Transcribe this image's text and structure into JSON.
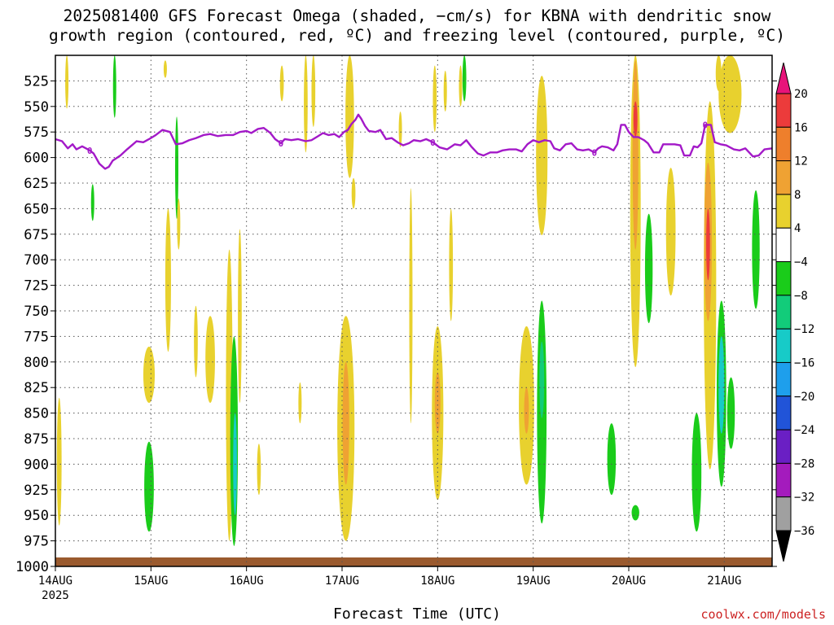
{
  "title_line1": "2025081400 GFS Forecast Omega (shaded, −cm/s) for KBNA with dendritic snow",
  "title_line2": "growth region (contoured, red, ºC) and freezing level (contoured, purple, ºC)",
  "xlabel": "Forecast Time (UTC)",
  "credit": "coolwx.com/models",
  "chart_data": {
    "type": "heatmap",
    "x_start_label": "14AUG",
    "x_start_year": "2025",
    "x_tick_labels": [
      "14AUG",
      "15AUG",
      "16AUG",
      "17AUG",
      "18AUG",
      "19AUG",
      "20AUG",
      "21AUG"
    ],
    "x_range_days": [
      0,
      7.5
    ],
    "y_axis": "pressure (hPa)",
    "y_tick_labels": [
      "525",
      "550",
      "575",
      "600",
      "625",
      "650",
      "675",
      "700",
      "725",
      "750",
      "775",
      "800",
      "825",
      "850",
      "875",
      "900",
      "925",
      "950",
      "975",
      "1000"
    ],
    "y_range": [
      500,
      1000
    ],
    "grid": true,
    "colorbar": {
      "labels": [
        "20",
        "16",
        "12",
        "8",
        "4",
        "−4",
        "−8",
        "−12",
        "−16",
        "−20",
        "−24",
        "−28",
        "−32",
        "−36"
      ],
      "colors": [
        "#e8137a",
        "#ec3b3b",
        "#ee7f2c",
        "#efa233",
        "#e8d12e",
        "#ffffff",
        "#1acc1a",
        "#12cc7a",
        "#17cbc8",
        "#1e9fec",
        "#2154d8",
        "#6a1fc4",
        "#a41bbd",
        "#a0a0a0",
        "#000000"
      ]
    },
    "freezing_level_label": "0",
    "freezing_level_color": "#a319c8",
    "freezing_level": [
      [
        0.0,
        582
      ],
      [
        0.07,
        584
      ],
      [
        0.13,
        591
      ],
      [
        0.18,
        587
      ],
      [
        0.22,
        592
      ],
      [
        0.28,
        589
      ],
      [
        0.32,
        591
      ],
      [
        0.36,
        593
      ],
      [
        0.4,
        596
      ],
      [
        0.46,
        606
      ],
      [
        0.52,
        611
      ],
      [
        0.56,
        609
      ],
      [
        0.6,
        603
      ],
      [
        0.68,
        598
      ],
      [
        0.75,
        592
      ],
      [
        0.8,
        588
      ],
      [
        0.85,
        584
      ],
      [
        0.92,
        585
      ],
      [
        0.98,
        582
      ],
      [
        1.05,
        578
      ],
      [
        1.12,
        573
      ],
      [
        1.2,
        575
      ],
      [
        1.26,
        587
      ],
      [
        1.33,
        586
      ],
      [
        1.4,
        583
      ],
      [
        1.47,
        581
      ],
      [
        1.55,
        578
      ],
      [
        1.62,
        577
      ],
      [
        1.7,
        579
      ],
      [
        1.78,
        578
      ],
      [
        1.86,
        578
      ],
      [
        1.93,
        575
      ],
      [
        2.0,
        574
      ],
      [
        2.05,
        576
      ],
      [
        2.12,
        572
      ],
      [
        2.18,
        571
      ],
      [
        2.25,
        576
      ],
      [
        2.3,
        582
      ],
      [
        2.36,
        586
      ],
      [
        2.4,
        582
      ],
      [
        2.47,
        583
      ],
      [
        2.54,
        582
      ],
      [
        2.62,
        584
      ],
      [
        2.68,
        583
      ],
      [
        2.75,
        579
      ],
      [
        2.8,
        576
      ],
      [
        2.86,
        578
      ],
      [
        2.92,
        577
      ],
      [
        2.97,
        580
      ],
      [
        3.02,
        575
      ],
      [
        3.06,
        573
      ],
      [
        3.1,
        567
      ],
      [
        3.14,
        563
      ],
      [
        3.17,
        558
      ],
      [
        3.2,
        562
      ],
      [
        3.24,
        569
      ],
      [
        3.28,
        574
      ],
      [
        3.35,
        575
      ],
      [
        3.4,
        573
      ],
      [
        3.46,
        582
      ],
      [
        3.52,
        581
      ],
      [
        3.58,
        585
      ],
      [
        3.64,
        588
      ],
      [
        3.7,
        586
      ],
      [
        3.75,
        583
      ],
      [
        3.82,
        584
      ],
      [
        3.88,
        582
      ],
      [
        3.95,
        585
      ],
      [
        4.02,
        590
      ],
      [
        4.1,
        592
      ],
      [
        4.18,
        587
      ],
      [
        4.24,
        588
      ],
      [
        4.3,
        583
      ],
      [
        4.35,
        589
      ],
      [
        4.42,
        596
      ],
      [
        4.48,
        598
      ],
      [
        4.55,
        595
      ],
      [
        4.62,
        595
      ],
      [
        4.68,
        593
      ],
      [
        4.75,
        592
      ],
      [
        4.82,
        592
      ],
      [
        4.88,
        594
      ],
      [
        4.94,
        587
      ],
      [
        5.0,
        583
      ],
      [
        5.06,
        585
      ],
      [
        5.12,
        583
      ],
      [
        5.18,
        584
      ],
      [
        5.22,
        591
      ],
      [
        5.28,
        593
      ],
      [
        5.34,
        587
      ],
      [
        5.4,
        586
      ],
      [
        5.46,
        592
      ],
      [
        5.52,
        593
      ],
      [
        5.58,
        592
      ],
      [
        5.64,
        595
      ],
      [
        5.68,
        591
      ],
      [
        5.72,
        589
      ],
      [
        5.78,
        590
      ],
      [
        5.84,
        593
      ],
      [
        5.88,
        587
      ],
      [
        5.92,
        568
      ],
      [
        5.96,
        568
      ],
      [
        6.0,
        575
      ],
      [
        6.05,
        580
      ],
      [
        6.1,
        580
      ],
      [
        6.16,
        583
      ],
      [
        6.2,
        586
      ],
      [
        6.26,
        595
      ],
      [
        6.32,
        595
      ],
      [
        6.36,
        587
      ],
      [
        6.42,
        587
      ],
      [
        6.48,
        587
      ],
      [
        6.54,
        588
      ],
      [
        6.58,
        598
      ],
      [
        6.64,
        598
      ],
      [
        6.68,
        589
      ],
      [
        6.72,
        590
      ],
      [
        6.76,
        586
      ],
      [
        6.8,
        568
      ],
      [
        6.86,
        568
      ],
      [
        6.9,
        585
      ],
      [
        6.96,
        587
      ],
      [
        7.02,
        588
      ],
      [
        7.1,
        592
      ],
      [
        7.16,
        593
      ],
      [
        7.22,
        591
      ],
      [
        7.3,
        599
      ],
      [
        7.36,
        598
      ],
      [
        7.42,
        592
      ],
      [
        7.5,
        591
      ]
    ],
    "ground_color": "#9a5a2e",
    "shaded_regions": [
      {
        "value": 8,
        "color": "#e8d12e",
        "x": 0.12,
        "p0": 500,
        "p1": 552,
        "w": 0.02
      },
      {
        "value": 8,
        "color": "#e8d12e",
        "x": 0.04,
        "p0": 835,
        "p1": 960,
        "w": 0.05
      },
      {
        "value": -8,
        "color": "#1acc1a",
        "x": 0.62,
        "p0": 500,
        "p1": 561,
        "w": 0.02
      },
      {
        "value": -8,
        "color": "#1acc1a",
        "x": 0.39,
        "p0": 626,
        "p1": 662,
        "w": 0.02
      },
      {
        "value": 8,
        "color": "#e8d12e",
        "x": 1.15,
        "p0": 505,
        "p1": 522,
        "w": 0.03
      },
      {
        "value": 8,
        "color": "#e8d12e",
        "x": 0.98,
        "p0": 785,
        "p1": 840,
        "w": 0.12
      },
      {
        "value": -8,
        "color": "#1acc1a",
        "x": 0.98,
        "p0": 878,
        "p1": 966,
        "w": 0.1
      },
      {
        "value": 8,
        "color": "#e8d12e",
        "x": 1.18,
        "p0": 650,
        "p1": 790,
        "w": 0.06
      },
      {
        "value": -8,
        "color": "#1acc1a",
        "x": 1.27,
        "p0": 560,
        "p1": 660,
        "w": 0.03
      },
      {
        "value": 8,
        "color": "#e8d12e",
        "x": 1.29,
        "p0": 640,
        "p1": 690,
        "w": 0.03
      },
      {
        "value": 8,
        "color": "#e8d12e",
        "x": 1.47,
        "p0": 745,
        "p1": 815,
        "w": 0.04
      },
      {
        "value": 8,
        "color": "#e8d12e",
        "x": 1.62,
        "p0": 755,
        "p1": 840,
        "w": 0.1
      },
      {
        "value": 8,
        "color": "#e8d12e",
        "x": 1.82,
        "p0": 690,
        "p1": 975,
        "w": 0.07
      },
      {
        "value": -8,
        "color": "#1acc1a",
        "x": 1.87,
        "p0": 775,
        "p1": 980,
        "w": 0.08
      },
      {
        "value": -16,
        "color": "#17cbc8",
        "x": 1.88,
        "p0": 850,
        "p1": 950,
        "w": 0.04
      },
      {
        "value": 8,
        "color": "#e8d12e",
        "x": 1.93,
        "p0": 670,
        "p1": 840,
        "w": 0.04
      },
      {
        "value": 8,
        "color": "#e8d12e",
        "x": 2.13,
        "p0": 880,
        "p1": 930,
        "w": 0.04
      },
      {
        "value": 8,
        "color": "#e8d12e",
        "x": 2.56,
        "p0": 820,
        "p1": 860,
        "w": 0.02
      },
      {
        "value": 8,
        "color": "#e8d12e",
        "x": 2.62,
        "p0": 500,
        "p1": 595,
        "w": 0.04
      },
      {
        "value": 8,
        "color": "#e8d12e",
        "x": 2.37,
        "p0": 510,
        "p1": 545,
        "w": 0.04
      },
      {
        "value": 8,
        "color": "#e8d12e",
        "x": 2.7,
        "p0": 500,
        "p1": 570,
        "w": 0.04
      },
      {
        "value": 8,
        "color": "#e8d12e",
        "x": 3.08,
        "p0": 500,
        "p1": 620,
        "w": 0.09
      },
      {
        "value": 8,
        "color": "#e8d12e",
        "x": 3.12,
        "p0": 620,
        "p1": 650,
        "w": 0.04
      },
      {
        "value": 8,
        "color": "#e8d12e",
        "x": 3.04,
        "p0": 755,
        "p1": 975,
        "w": 0.18
      },
      {
        "value": 12,
        "color": "#efa233",
        "x": 3.04,
        "p0": 800,
        "p1": 920,
        "w": 0.07
      },
      {
        "value": 8,
        "color": "#e8d12e",
        "x": 3.61,
        "p0": 555,
        "p1": 590,
        "w": 0.02
      },
      {
        "value": 8,
        "color": "#e8d12e",
        "x": 3.72,
        "p0": 630,
        "p1": 860,
        "w": 0.03
      },
      {
        "value": 8,
        "color": "#e8d12e",
        "x": 3.97,
        "p0": 510,
        "p1": 575,
        "w": 0.04
      },
      {
        "value": 8,
        "color": "#e8d12e",
        "x": 4.08,
        "p0": 515,
        "p1": 555,
        "w": 0.03
      },
      {
        "value": 8,
        "color": "#e8d12e",
        "x": 4.24,
        "p0": 510,
        "p1": 550,
        "w": 0.03
      },
      {
        "value": -8,
        "color": "#1acc1a",
        "x": 4.28,
        "p0": 500,
        "p1": 545,
        "w": 0.04
      },
      {
        "value": 8,
        "color": "#e8d12e",
        "x": 4.14,
        "p0": 650,
        "p1": 760,
        "w": 0.04
      },
      {
        "value": 8,
        "color": "#e8d12e",
        "x": 4.0,
        "p0": 765,
        "p1": 935,
        "w": 0.12
      },
      {
        "value": 12,
        "color": "#efa233",
        "x": 4.0,
        "p0": 810,
        "p1": 870,
        "w": 0.06
      },
      {
        "value": 8,
        "color": "#e8d12e",
        "x": 5.09,
        "p0": 520,
        "p1": 676,
        "w": 0.12
      },
      {
        "value": 8,
        "color": "#e8d12e",
        "x": 4.93,
        "p0": 765,
        "p1": 920,
        "w": 0.16
      },
      {
        "value": 12,
        "color": "#efa233",
        "x": 4.93,
        "p0": 825,
        "p1": 870,
        "w": 0.05
      },
      {
        "value": -8,
        "color": "#1acc1a",
        "x": 5.09,
        "p0": 740,
        "p1": 958,
        "w": 0.1
      },
      {
        "value": -12,
        "color": "#12cc7a",
        "x": 5.09,
        "p0": 780,
        "p1": 855,
        "w": 0.05
      },
      {
        "value": -8,
        "color": "#1acc1a",
        "x": 5.82,
        "p0": 860,
        "p1": 930,
        "w": 0.09
      },
      {
        "value": -8,
        "color": "#1acc1a",
        "x": 6.07,
        "p0": 940,
        "p1": 955,
        "w": 0.08
      },
      {
        "value": 8,
        "color": "#e8d12e",
        "x": 6.07,
        "p0": 500,
        "p1": 805,
        "w": 0.11
      },
      {
        "value": 12,
        "color": "#efa233",
        "x": 6.07,
        "p0": 505,
        "p1": 690,
        "w": 0.06
      },
      {
        "value": 16,
        "color": "#ec3b3b",
        "x": 6.07,
        "p0": 545,
        "p1": 580,
        "w": 0.04
      },
      {
        "value": -8,
        "color": "#1acc1a",
        "x": 6.21,
        "p0": 655,
        "p1": 762,
        "w": 0.08
      },
      {
        "value": 8,
        "color": "#e8d12e",
        "x": 6.44,
        "p0": 610,
        "p1": 735,
        "w": 0.1
      },
      {
        "value": -8,
        "color": "#1acc1a",
        "x": 6.71,
        "p0": 850,
        "p1": 966,
        "w": 0.1
      },
      {
        "value": 8,
        "color": "#e8d12e",
        "x": 6.85,
        "p0": 545,
        "p1": 905,
        "w": 0.13
      },
      {
        "value": 12,
        "color": "#efa233",
        "x": 6.83,
        "p0": 605,
        "p1": 760,
        "w": 0.08
      },
      {
        "value": 16,
        "color": "#ec3b3b",
        "x": 6.83,
        "p0": 650,
        "p1": 720,
        "w": 0.04
      },
      {
        "value": 8,
        "color": "#e8d12e",
        "x": 7.06,
        "p0": 500,
        "p1": 576,
        "w": 0.24
      },
      {
        "value": 8,
        "color": "#e8d12e",
        "x": 6.94,
        "p0": 500,
        "p1": 535,
        "w": 0.06
      },
      {
        "value": -8,
        "color": "#1acc1a",
        "x": 6.97,
        "p0": 740,
        "p1": 922,
        "w": 0.1
      },
      {
        "value": -16,
        "color": "#17cbc8",
        "x": 6.97,
        "p0": 775,
        "p1": 870,
        "w": 0.06
      },
      {
        "value": -8,
        "color": "#1acc1a",
        "x": 7.07,
        "p0": 815,
        "p1": 885,
        "w": 0.08
      },
      {
        "value": -8,
        "color": "#1acc1a",
        "x": 7.33,
        "p0": 632,
        "p1": 748,
        "w": 0.08
      }
    ]
  }
}
